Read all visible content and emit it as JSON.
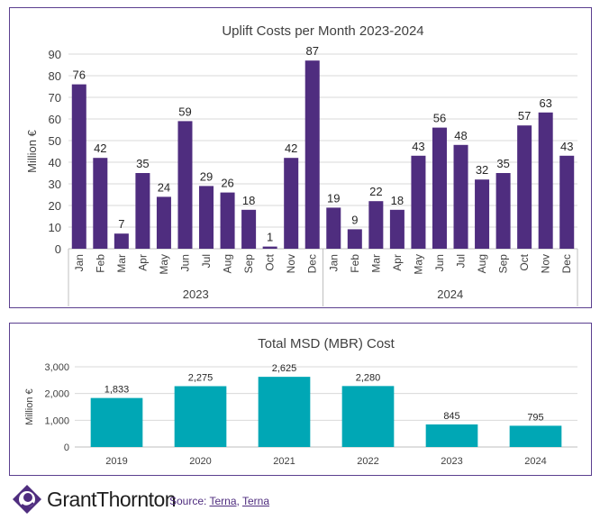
{
  "colors": {
    "accent": "#4f2d7f",
    "teal": "#00a7b5"
  },
  "chart_data": [
    {
      "type": "bar",
      "title": "Uplift Costs per Month 2023-2024",
      "ylabel": "Million €",
      "xlabel": "",
      "ylim": [
        0,
        90
      ],
      "yticks": [
        0,
        10,
        20,
        30,
        40,
        50,
        60,
        70,
        80,
        90
      ],
      "grid": true,
      "groups": [
        {
          "label": "2023",
          "categories": [
            "Jan",
            "Feb",
            "Mar",
            "Apr",
            "May",
            "Jun",
            "Jul",
            "Aug",
            "Sep",
            "Oct",
            "Nov",
            "Dec"
          ],
          "values": [
            76,
            42,
            7,
            35,
            24,
            59,
            29,
            26,
            18,
            1,
            42,
            87
          ]
        },
        {
          "label": "2024",
          "categories": [
            "Jan",
            "Feb",
            "Mar",
            "Apr",
            "May",
            "Jun",
            "Jul",
            "Aug",
            "Sep",
            "Oct",
            "Nov",
            "Dec"
          ],
          "values": [
            19,
            9,
            22,
            18,
            43,
            56,
            48,
            32,
            35,
            57,
            63,
            43
          ]
        }
      ],
      "bar_color": "#4f2d7f"
    },
    {
      "type": "bar",
      "title": "Total MSD (MBR) Cost",
      "ylabel": "Million €",
      "xlabel": "",
      "ylim": [
        0,
        3000
      ],
      "yticks": [
        0,
        1000,
        2000,
        3000
      ],
      "ytick_labels": [
        "0",
        "1,000",
        "2,000",
        "3,000"
      ],
      "grid": true,
      "categories": [
        "2019",
        "2020",
        "2021",
        "2022",
        "2023",
        "2024"
      ],
      "values": [
        1833,
        2275,
        2625,
        2280,
        845,
        795
      ],
      "value_labels": [
        "1,833",
        "2,275",
        "2,625",
        "2,280",
        "845",
        "795"
      ],
      "bar_color": "#00a7b5"
    }
  ],
  "footer": {
    "brand": "GrantThornton",
    "source_label": "Source: ",
    "links": [
      "Terna",
      "Terna"
    ],
    "separator": ", "
  }
}
